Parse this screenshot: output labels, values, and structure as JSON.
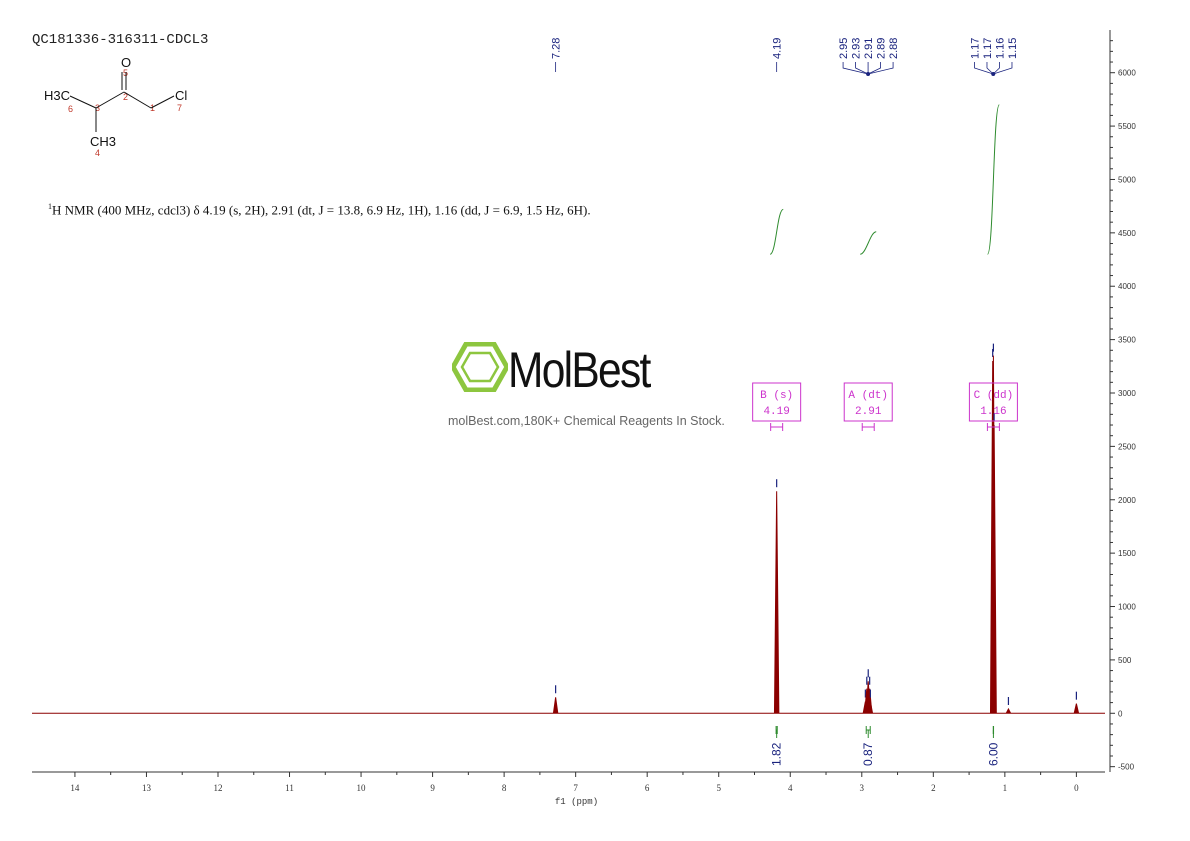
{
  "sample_id": "QC181336-316311-CDCL3",
  "nmr_description": {
    "prefix_sup": "1",
    "text": "H NMR (400 MHz, cdcl3) δ 4.19 (s, 2H), 2.91 (dt, J = 13.8, 6.9 Hz, 1H), 1.16 (dd, J = 6.9, 1.5 Hz, 6H)."
  },
  "structure": {
    "atoms": {
      "o": "O",
      "cl": "Cl",
      "h3c": "H3C",
      "ch3": "CH3"
    },
    "numbers": [
      "5",
      "6",
      "3",
      "2",
      "1",
      "7",
      "4"
    ]
  },
  "watermark": {
    "brand": "MolBest",
    "tagline": "molBest.com,180K+ Chemical Reagents In Stock.",
    "brand_color": "#8dc63f"
  },
  "chart_data": {
    "type": "line",
    "xlabel": "f1 (ppm)",
    "xlim": [
      14.6,
      -0.4
    ],
    "ylim": [
      -550,
      6400
    ],
    "x_ticks": [
      14,
      13,
      12,
      11,
      10,
      9,
      8,
      7,
      6,
      5,
      4,
      3,
      2,
      1,
      0
    ],
    "y_ticks": [
      -500,
      0,
      500,
      1000,
      1500,
      2000,
      2500,
      3000,
      3500,
      4000,
      4500,
      5000,
      5500,
      6000
    ],
    "spectrum_color": "#8b0000",
    "integral_color": "#2e8b2e",
    "label_color": "#1a237e",
    "box_color": "#cc33cc",
    "peaks": [
      {
        "ppm": 7.28,
        "height": 150
      },
      {
        "ppm": 4.19,
        "height": 2080
      },
      {
        "ppm": 2.95,
        "height": 110
      },
      {
        "ppm": 2.93,
        "height": 230
      },
      {
        "ppm": 2.91,
        "height": 300
      },
      {
        "ppm": 2.89,
        "height": 230
      },
      {
        "ppm": 2.88,
        "height": 110
      },
      {
        "ppm": 1.17,
        "height": 3300
      },
      {
        "ppm": 1.16,
        "height": 3350
      },
      {
        "ppm": 1.15,
        "height": 2700
      },
      {
        "ppm": 0.95,
        "height": 40
      },
      {
        "ppm": 0.0,
        "height": 90
      }
    ],
    "peak_label_groups": [
      {
        "labels": [
          "7.28"
        ],
        "ppm": [
          7.28
        ]
      },
      {
        "labels": [
          "4.19"
        ],
        "ppm": [
          4.19
        ]
      },
      {
        "labels": [
          "2.95",
          "2.93",
          "2.91",
          "2.89",
          "2.88"
        ],
        "ppm": [
          2.95,
          2.93,
          2.91,
          2.89,
          2.88
        ]
      },
      {
        "labels": [
          "1.17",
          "1.17",
          "1.16",
          "1.15"
        ],
        "ppm": [
          1.17,
          1.17,
          1.16,
          1.15
        ]
      }
    ],
    "integrals": [
      {
        "from": 4.24,
        "to": 4.14,
        "value": "1.82",
        "y_start": 4300,
        "y_end": 4720
      },
      {
        "from": 2.98,
        "to": 2.84,
        "value": "0.87",
        "y_start": 4300,
        "y_end": 4510
      },
      {
        "from": 1.2,
        "to": 1.12,
        "value": "6.00",
        "y_start": 4300,
        "y_end": 5700
      }
    ],
    "multiplets": [
      {
        "letter": "B (s)",
        "shift": "4.19",
        "ppm": 4.19
      },
      {
        "letter": "A (dt)",
        "shift": "2.91",
        "ppm": 2.91
      },
      {
        "letter": "C (dd)",
        "shift": "1.16",
        "ppm": 1.16
      }
    ]
  }
}
